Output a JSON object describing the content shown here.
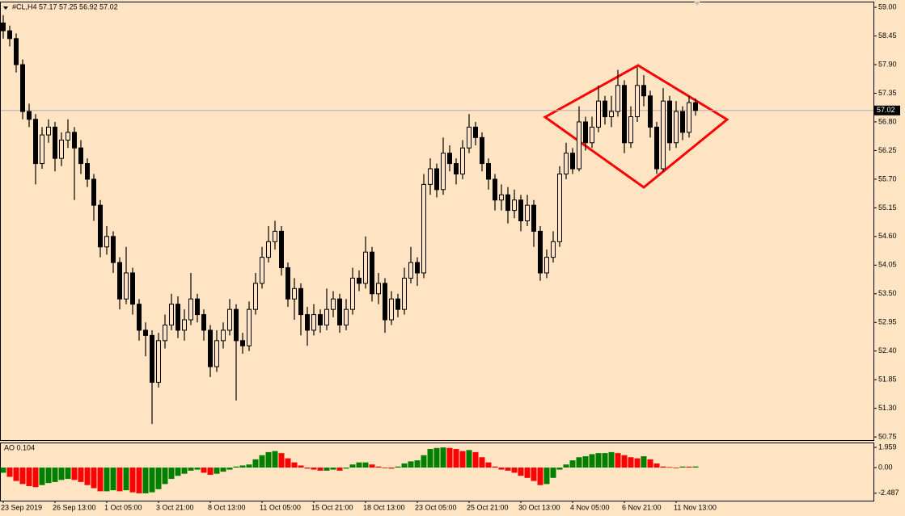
{
  "chart_data": [
    {
      "type": "candlestick",
      "title": "#CL,H4  57.17 57.25 56.92 57.02",
      "categories": [
        "23 Sep 2019",
        null,
        null,
        null,
        null,
        null,
        null,
        null,
        "26 Sep 13:00",
        null,
        null,
        null,
        null,
        null,
        null,
        null,
        "1 Oct 05:00",
        null,
        null,
        null,
        null,
        null,
        null,
        null,
        "3 Oct 21:00",
        null,
        null,
        null,
        null,
        null,
        null,
        null,
        "8 Oct 13:00",
        null,
        null,
        null,
        null,
        null,
        null,
        null,
        "11 Oct 05:00",
        null,
        null,
        null,
        null,
        null,
        null,
        null,
        "15 Oct 21:00",
        null,
        null,
        null,
        null,
        null,
        null,
        null,
        "18 Oct 13:00",
        null,
        null,
        null,
        null,
        null,
        null,
        null,
        "23 Oct 05:00",
        null,
        null,
        null,
        null,
        null,
        null,
        null,
        "25 Oct 21:00",
        null,
        null,
        null,
        null,
        null,
        null,
        null,
        "30 Oct 13:00",
        null,
        null,
        null,
        null,
        null,
        null,
        null,
        "4 Nov 05:00",
        null,
        null,
        null,
        null,
        null,
        null,
        null,
        "6 Nov 21:00",
        null,
        null,
        null,
        null,
        null,
        null,
        null,
        "11 Nov 13:00",
        null,
        null,
        null
      ],
      "open": [
        58.7,
        58.55,
        58.4,
        57.9,
        57.0,
        56.85,
        56.0,
        56.55,
        56.7,
        56.1,
        56.45,
        56.6,
        56.3,
        56.0,
        55.7,
        55.2,
        54.4,
        54.6,
        54.1,
        53.4,
        53.9,
        53.3,
        52.8,
        52.7,
        51.8,
        52.6,
        52.9,
        53.3,
        52.8,
        53.0,
        53.4,
        53.1,
        52.8,
        52.1,
        52.6,
        52.8,
        53.2,
        52.6,
        52.5,
        53.2,
        53.7,
        54.2,
        54.5,
        54.7,
        54.0,
        53.4,
        53.6,
        53.1,
        52.8,
        53.1,
        52.9,
        53.2,
        53.4,
        52.9,
        53.2,
        53.8,
        53.7,
        54.3,
        53.5,
        53.7,
        53.0,
        53.4,
        53.2,
        53.8,
        54.1,
        53.9,
        55.6,
        55.9,
        55.5,
        56.2,
        56.0,
        55.8,
        56.3,
        56.7,
        56.5,
        56.0,
        55.7,
        55.3,
        55.4,
        55.1,
        55.3,
        54.9,
        55.2,
        54.7,
        53.9,
        54.2,
        54.5,
        55.8,
        56.2,
        55.9,
        56.8,
        56.4,
        56.7,
        57.2,
        56.9,
        57.0,
        57.5,
        56.4,
        56.9,
        57.5,
        57.3,
        56.7,
        55.9,
        57.2,
        56.4,
        57.0,
        56.6,
        57.17
      ],
      "high": [
        58.85,
        58.65,
        58.5,
        58.0,
        57.15,
        56.95,
        56.7,
        56.85,
        56.8,
        56.6,
        56.85,
        56.7,
        56.45,
        56.1,
        55.8,
        55.3,
        54.8,
        54.7,
        54.2,
        54.4,
        54.0,
        53.4,
        52.95,
        52.8,
        52.75,
        53.1,
        53.5,
        53.45,
        53.2,
        53.9,
        53.5,
        53.2,
        52.9,
        52.8,
        52.95,
        53.4,
        53.3,
        52.75,
        53.35,
        53.9,
        54.4,
        54.8,
        54.9,
        54.8,
        54.1,
        53.8,
        53.7,
        53.25,
        53.3,
        53.2,
        53.6,
        53.55,
        53.5,
        53.4,
        54.0,
        53.95,
        54.6,
        54.4,
        53.9,
        53.8,
        53.55,
        53.5,
        54.0,
        54.4,
        54.2,
        55.8,
        56.1,
        56.0,
        56.5,
        56.35,
        56.1,
        56.45,
        56.95,
        56.8,
        56.6,
        56.1,
        55.8,
        55.6,
        55.55,
        55.5,
        55.4,
        55.4,
        55.3,
        54.8,
        54.35,
        54.7,
        55.95,
        56.4,
        56.3,
        57.1,
        56.9,
        56.9,
        57.5,
        57.3,
        57.3,
        57.8,
        57.6,
        57.1,
        57.85,
        57.7,
        57.4,
        56.8,
        57.45,
        57.3,
        57.2,
        57.1,
        57.3,
        57.25
      ],
      "low": [
        58.4,
        58.25,
        57.75,
        56.85,
        56.7,
        55.6,
        55.9,
        56.4,
        55.85,
        55.95,
        56.3,
        55.3,
        55.8,
        55.55,
        54.9,
        54.2,
        54.25,
        53.9,
        53.2,
        53.3,
        53.1,
        52.6,
        52.3,
        51.0,
        51.7,
        52.45,
        52.8,
        52.65,
        52.6,
        52.9,
        52.95,
        52.6,
        51.9,
        52.0,
        52.45,
        52.7,
        51.45,
        52.35,
        52.4,
        53.1,
        53.6,
        54.1,
        54.35,
        53.85,
        53.25,
        53.0,
        52.7,
        52.5,
        52.7,
        52.75,
        52.8,
        53.05,
        52.75,
        52.8,
        53.1,
        53.55,
        53.6,
        53.35,
        53.3,
        52.75,
        52.9,
        53.05,
        53.1,
        53.7,
        53.65,
        53.8,
        55.4,
        55.35,
        55.4,
        55.85,
        55.6,
        55.7,
        56.2,
        56.35,
        55.85,
        55.5,
        55.1,
        55.1,
        54.85,
        54.95,
        54.7,
        54.8,
        54.4,
        53.75,
        53.8,
        54.1,
        54.4,
        55.7,
        55.8,
        55.85,
        56.25,
        56.3,
        56.6,
        56.75,
        56.7,
        56.9,
        56.2,
        56.3,
        56.8,
        57.1,
        56.5,
        55.8,
        55.85,
        56.25,
        56.3,
        56.45,
        56.5,
        56.92
      ],
      "close": [
        58.55,
        58.4,
        57.9,
        57.0,
        56.85,
        56.0,
        56.55,
        56.7,
        56.1,
        56.45,
        56.6,
        56.3,
        56.0,
        55.7,
        55.2,
        54.4,
        54.6,
        54.1,
        53.4,
        53.9,
        53.3,
        52.8,
        52.7,
        51.8,
        52.6,
        52.9,
        53.3,
        52.8,
        53.0,
        53.4,
        53.1,
        52.8,
        52.1,
        52.6,
        52.8,
        53.2,
        52.6,
        52.5,
        53.2,
        53.7,
        54.2,
        54.5,
        54.7,
        54.0,
        53.4,
        53.6,
        53.1,
        52.8,
        53.1,
        52.9,
        53.2,
        53.4,
        52.9,
        53.2,
        53.8,
        53.7,
        54.3,
        53.5,
        53.7,
        53.0,
        53.4,
        53.2,
        53.8,
        54.1,
        53.9,
        55.6,
        55.9,
        55.5,
        56.2,
        56.0,
        55.8,
        56.3,
        56.7,
        56.5,
        56.0,
        55.7,
        55.3,
        55.4,
        55.1,
        55.3,
        54.9,
        55.2,
        54.7,
        53.9,
        54.2,
        54.5,
        55.8,
        56.2,
        55.9,
        56.8,
        56.4,
        56.7,
        57.2,
        56.9,
        57.0,
        57.5,
        56.4,
        56.9,
        57.5,
        57.3,
        56.7,
        55.9,
        57.2,
        56.4,
        57.0,
        56.6,
        57.17,
        57.02
      ],
      "color": "#000000",
      "current_price": 57.02,
      "ylim": [
        50.69,
        59.11
      ],
      "yticks": [
        {
          "value": 59,
          "label": "59.00"
        },
        58.45,
        {
          "value": 57.9,
          "label": "57.90"
        },
        57.35,
        {
          "value": 56.8,
          "label": "56.80"
        },
        56.25,
        {
          "value": 55.7,
          "label": "55.70"
        },
        55.15,
        {
          "value": 54.6,
          "label": "54.60"
        },
        54.05,
        {
          "value": 53.5,
          "label": "53.50"
        },
        52.95,
        {
          "value": 52.4,
          "label": "52.40"
        },
        51.85,
        {
          "value": 51.3,
          "label": "51.30"
        },
        {
          "value": 50.75,
          "label": "50.75"
        }
      ]
    },
    {
      "type": "bar",
      "title": "AO 0.104",
      "values": [
        -0.5,
        -0.9,
        -1.3,
        -1.6,
        -1.8,
        -1.9,
        -1.7,
        -1.5,
        -1.4,
        -1.2,
        -1.1,
        -1.2,
        -1.4,
        -1.7,
        -2.0,
        -2.3,
        -2.3,
        -2.2,
        -2.3,
        -2.2,
        -2.4,
        -2.5,
        -2.5,
        -2.4,
        -2.1,
        -1.6,
        -1.1,
        -0.8,
        -0.6,
        -0.3,
        -0.2,
        -0.5,
        -0.7,
        -0.6,
        -0.4,
        -0.2,
        0.1,
        0.2,
        0.3,
        0.8,
        1.2,
        1.5,
        1.6,
        1.4,
        0.9,
        0.5,
        0.2,
        -0.1,
        -0.2,
        -0.3,
        -0.3,
        -0.2,
        -0.3,
        -0.1,
        0.3,
        0.5,
        0.5,
        0.3,
        0.1,
        0.0,
        -0.1,
        0.1,
        0.4,
        0.6,
        0.7,
        1.2,
        1.8,
        1.9,
        1.95,
        1.9,
        1.8,
        1.6,
        1.7,
        1.5,
        1.0,
        0.5,
        0.1,
        -0.2,
        -0.3,
        -0.5,
        -0.8,
        -1.0,
        -1.3,
        -1.7,
        -1.6,
        -1.0,
        -0.2,
        0.3,
        0.7,
        1.0,
        1.1,
        1.3,
        1.4,
        1.4,
        1.5,
        1.4,
        1.2,
        1.0,
        0.9,
        1.1,
        0.8,
        0.4,
        0.1,
        0.05,
        -0.05,
        0.1,
        0.09,
        0.104
      ],
      "up_color": "#008000",
      "down_color": "#ff0000",
      "ylim": [
        -3.21,
        2.43
      ],
      "yticks": [
        1.959,
        {
          "value": 0,
          "label": "0.00"
        },
        -2.487
      ]
    }
  ]
}
